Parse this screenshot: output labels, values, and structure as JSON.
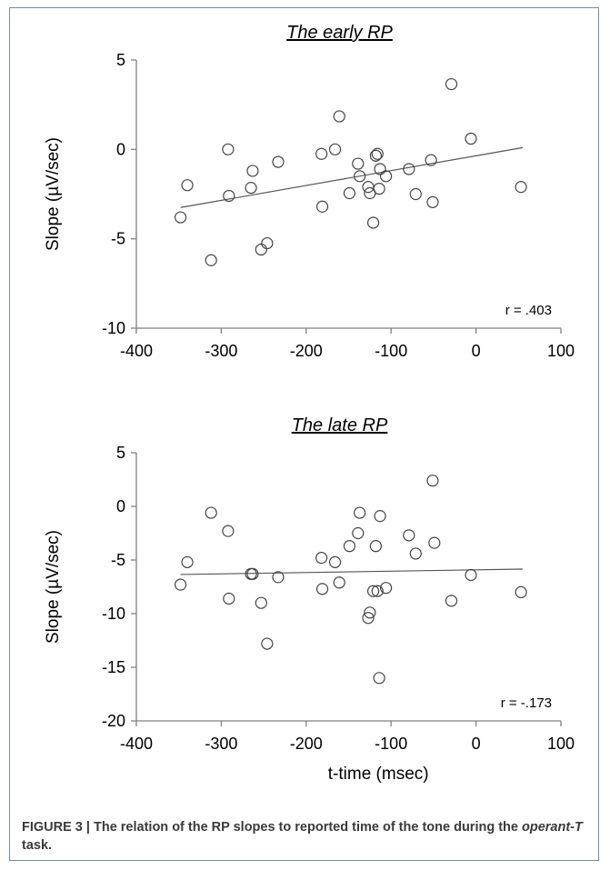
{
  "figure": {
    "caption_prefix": "FIGURE 3 | The relation of the RP slopes to reported time of the tone during the ",
    "caption_italic": "operant-T",
    "caption_suffix": " task."
  },
  "chart_data": [
    {
      "type": "scatter",
      "title": "The early RP",
      "xlabel": "",
      "ylabel": "Slope (µV/sec)",
      "xlim": [
        -400,
        100
      ],
      "ylim": [
        -10,
        5
      ],
      "xticks": [
        -400,
        -300,
        -200,
        -100,
        0,
        100
      ],
      "yticks": [
        5,
        0,
        -5,
        -10
      ],
      "annotation": "r  = .403",
      "trendline": {
        "x": [
          -348,
          55
        ],
        "y": [
          -3.25,
          0.1
        ]
      },
      "points": [
        [
          -348,
          -3.8
        ],
        [
          -340,
          -2.0
        ],
        [
          -312,
          -6.2
        ],
        [
          -292,
          0.0
        ],
        [
          -291,
          -2.6
        ],
        [
          -265,
          -2.15
        ],
        [
          -263,
          -1.2
        ],
        [
          -253,
          -5.6
        ],
        [
          -246,
          -5.25
        ],
        [
          -233,
          -0.7
        ],
        [
          -182,
          -0.25
        ],
        [
          -181,
          -3.2
        ],
        [
          -166,
          0.0
        ],
        [
          -161,
          1.85
        ],
        [
          -149,
          -2.45
        ],
        [
          -139,
          -0.8
        ],
        [
          -137,
          -1.5
        ],
        [
          -127,
          -2.1
        ],
        [
          -125,
          -2.45
        ],
        [
          -121,
          -4.1
        ],
        [
          -118,
          -0.35
        ],
        [
          -116,
          -0.25
        ],
        [
          -114,
          -2.2
        ],
        [
          -113,
          -1.1
        ],
        [
          -106,
          -1.5
        ],
        [
          -79,
          -1.1
        ],
        [
          -71,
          -2.5
        ],
        [
          -53,
          -0.6
        ],
        [
          -51,
          -2.95
        ],
        [
          -29,
          3.65
        ],
        [
          -6,
          0.6
        ],
        [
          53,
          -2.1
        ]
      ]
    },
    {
      "type": "scatter",
      "title": "The late RP",
      "xlabel": "t-time (msec)",
      "ylabel": "Slope (µV/sec)",
      "xlim": [
        -400,
        100
      ],
      "ylim": [
        -20,
        5
      ],
      "xticks": [
        -400,
        -300,
        -200,
        -100,
        0,
        100
      ],
      "yticks": [
        5,
        0,
        -5,
        -10,
        -15,
        -20
      ],
      "annotation": "r = -.173",
      "trendline": {
        "x": [
          -348,
          55
        ],
        "y": [
          -6.35,
          -5.85
        ]
      },
      "points": [
        [
          -348,
          -7.3
        ],
        [
          -340,
          -5.2
        ],
        [
          -312,
          -0.6
        ],
        [
          -292,
          -2.3
        ],
        [
          -291,
          -8.6
        ],
        [
          -265,
          -6.3
        ],
        [
          -263,
          -6.3
        ],
        [
          -253,
          -9.0
        ],
        [
          -246,
          -12.8
        ],
        [
          -233,
          -6.6
        ],
        [
          -182,
          -4.8
        ],
        [
          -181,
          -7.7
        ],
        [
          -166,
          -5.2
        ],
        [
          -161,
          -7.1
        ],
        [
          -149,
          -3.7
        ],
        [
          -139,
          -2.5
        ],
        [
          -137,
          -0.6
        ],
        [
          -127,
          -10.4
        ],
        [
          -125,
          -9.9
        ],
        [
          -121,
          -7.9
        ],
        [
          -118,
          -3.7
        ],
        [
          -116,
          -7.9
        ],
        [
          -114,
          -16.0
        ],
        [
          -113,
          -0.9
        ],
        [
          -106,
          -7.6
        ],
        [
          -79,
          -2.7
        ],
        [
          -71,
          -4.4
        ],
        [
          -51,
          2.4
        ],
        [
          -49,
          -3.4
        ],
        [
          -29,
          -8.8
        ],
        [
          -6,
          -6.4
        ],
        [
          53,
          -8.0
        ]
      ]
    }
  ]
}
